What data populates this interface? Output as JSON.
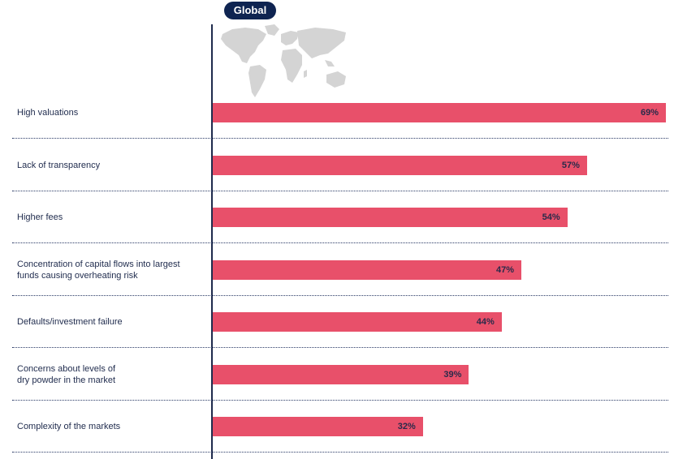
{
  "header": {
    "badge_label": "Global",
    "map_icon": "world-map-icon"
  },
  "colors": {
    "bar": "#e8506a",
    "badge": "#0f2451",
    "axis": "#1f2b4d"
  },
  "chart_data": {
    "type": "bar",
    "orientation": "horizontal",
    "title": "Global",
    "categories": [
      "High valuations",
      "Lack of transparency",
      "Higher fees",
      "Concentration of capital flows into largest funds causing overheating risk",
      "Defaults/investment failure",
      "Concerns about levels of dry powder in the market",
      "Complexity of the markets"
    ],
    "category_lines": [
      [
        "High valuations"
      ],
      [
        "Lack of transparency"
      ],
      [
        "Higher fees"
      ],
      [
        "Concentration of capital flows into largest",
        "funds causing overheating risk"
      ],
      [
        "Defaults/investment failure"
      ],
      [
        "Concerns about levels of",
        "dry powder in the market"
      ],
      [
        "Complexity of the markets"
      ]
    ],
    "values": [
      69,
      57,
      54,
      47,
      44,
      39,
      32
    ],
    "value_labels": [
      "69%",
      "57%",
      "54%",
      "47%",
      "44%",
      "39%",
      "32%"
    ],
    "xlim": [
      0,
      69
    ],
    "grid": false,
    "legend": "none"
  }
}
